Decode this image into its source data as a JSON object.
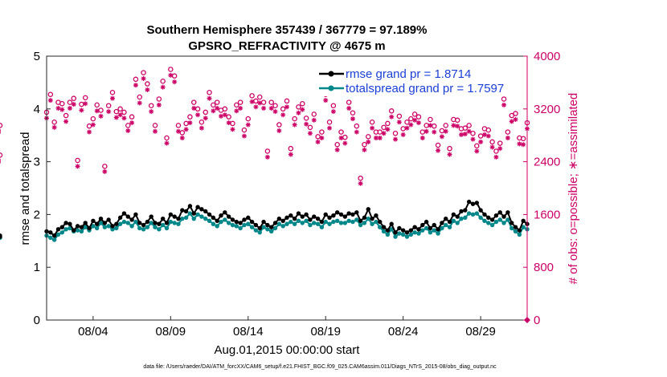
{
  "chart_data": {
    "type": "line",
    "title": "Southern Hemisphere 357439 / 367779 = 97.189%",
    "subtitle": "GPSRO_REFRACTIVITY @ 4675 m",
    "xlabel": "Aug.01,2015 00:00:00 start",
    "ylabel": "rmse and totalspread",
    "ylabel_right": "# of obs: o=possible; ∗=assimilated",
    "footer": "data file: /Users/raeder/DAI/ATM_forcXX/CAM6_setup/f.e21.FHIST_BGC.f09_025.CAM6assim.011/Diags_NTrS_2015-08/obs_diag_output.nc",
    "x_start_day": 1,
    "x_ticks": [
      {
        "label": "08/04",
        "day": 4
      },
      {
        "label": "08/09",
        "day": 9
      },
      {
        "label": "08/14",
        "day": 14
      },
      {
        "label": "08/19",
        "day": 19
      },
      {
        "label": "08/24",
        "day": 24
      },
      {
        "label": "08/29",
        "day": 29
      }
    ],
    "xlim_days": [
      1,
      32
    ],
    "ylim": [
      0,
      5
    ],
    "yticks": [
      "0",
      "1",
      "2",
      "3",
      "4",
      "5"
    ],
    "ylim_right": [
      0,
      4000
    ],
    "yticks_right": [
      "0",
      "800",
      "1600",
      "2400",
      "3200",
      "4000"
    ],
    "grid": false,
    "legend_position": "top-right",
    "colors": {
      "rmse": "#000000",
      "totalspread": "#00878a",
      "obs": "#cc0066",
      "legend_text": "#1a3fd6"
    },
    "series": [
      {
        "name": "rmse grand pr = 1.8714",
        "marker": "circle",
        "x_day_offsets": [
          0.0,
          0.25,
          0.5,
          0.75,
          1.0,
          1.25,
          1.5,
          1.75,
          2.0,
          2.25,
          2.5,
          2.75,
          3.0,
          3.25,
          3.5,
          3.75,
          4.0,
          4.25,
          4.5,
          4.75,
          5.0,
          5.25,
          5.5,
          5.75,
          6.0,
          6.25,
          6.5,
          6.75,
          7.0,
          7.25,
          7.5,
          7.75,
          8.0,
          8.25,
          8.5,
          8.75,
          9.0,
          9.25,
          9.5,
          9.75,
          10.0,
          10.25,
          10.5,
          10.75,
          11.0,
          11.25,
          11.5,
          11.75,
          12.0,
          12.25,
          12.5,
          12.75,
          13.0,
          13.25,
          13.5,
          13.75,
          14.0,
          14.25,
          14.5,
          14.75,
          15.0,
          15.25,
          15.5,
          15.75,
          16.0,
          16.25,
          16.5,
          16.75,
          17.0,
          17.25,
          17.5,
          17.75,
          18.0,
          18.25,
          18.5,
          18.75,
          19.0,
          19.25,
          19.5,
          19.75,
          20.0,
          20.25,
          20.5,
          20.75,
          21.0,
          21.25,
          21.5,
          21.75,
          22.0,
          22.25,
          22.5,
          22.75,
          23.0,
          23.25,
          23.5,
          23.75,
          24.0,
          24.25,
          24.5,
          24.75,
          25.0,
          25.25,
          25.5,
          25.75,
          26.0,
          26.25,
          26.5,
          26.75,
          27.0,
          27.25,
          27.5,
          27.75,
          28.0,
          28.25,
          28.5,
          28.75,
          29.0,
          29.25,
          29.5,
          29.75,
          30.0,
          30.25,
          30.5,
          30.75,
          31.0
        ],
        "values": [
          1.68,
          1.66,
          1.6,
          1.72,
          1.76,
          1.84,
          1.82,
          1.7,
          1.78,
          1.76,
          1.84,
          1.74,
          1.88,
          1.82,
          1.92,
          1.84,
          1.9,
          1.78,
          1.82,
          1.94,
          2.02,
          1.96,
          1.9,
          2.0,
          1.84,
          1.8,
          1.86,
          1.96,
          1.84,
          1.82,
          1.92,
          1.84,
          2.0,
          1.96,
          1.92,
          2.08,
          2.06,
          2.16,
          2.02,
          2.14,
          2.1,
          2.06,
          2.0,
          1.94,
          1.88,
          1.98,
          2.04,
          1.96,
          1.9,
          1.86,
          1.84,
          1.9,
          1.94,
          1.86,
          1.8,
          1.74,
          1.86,
          1.8,
          1.76,
          1.84,
          1.92,
          1.88,
          1.94,
          1.98,
          1.92,
          2.02,
          1.96,
          2.0,
          1.9,
          1.96,
          1.92,
          1.86,
          2.0,
          1.94,
          1.98,
          2.04,
          2.0,
          1.96,
          2.02,
          2.0,
          2.04,
          1.88,
          1.94,
          2.1,
          1.92,
          1.98,
          1.86,
          1.76,
          1.7,
          1.82,
          1.66,
          1.74,
          1.7,
          1.66,
          1.7,
          1.76,
          1.72,
          1.8,
          1.86,
          1.74,
          1.8,
          1.72,
          1.84,
          1.92,
          1.86,
          2.0,
          1.96,
          2.06,
          2.08,
          2.24,
          2.2,
          2.22,
          2.08,
          2.0,
          1.94,
          1.9,
          1.98,
          2.04,
          1.96,
          2.04,
          1.84,
          1.76,
          1.7,
          1.88,
          1.82,
          1.6,
          1.58
        ]
      },
      {
        "name": "totalspread grand pr = 1.7597",
        "marker": "circle",
        "x_day_offsets": [
          0.0,
          0.25,
          0.5,
          0.75,
          1.0,
          1.25,
          1.5,
          1.75,
          2.0,
          2.25,
          2.5,
          2.75,
          3.0,
          3.25,
          3.5,
          3.75,
          4.0,
          4.25,
          4.5,
          4.75,
          5.0,
          5.25,
          5.5,
          5.75,
          6.0,
          6.25,
          6.5,
          6.75,
          7.0,
          7.25,
          7.5,
          7.75,
          8.0,
          8.25,
          8.5,
          8.75,
          9.0,
          9.25,
          9.5,
          9.75,
          10.0,
          10.25,
          10.5,
          10.75,
          11.0,
          11.25,
          11.5,
          11.75,
          12.0,
          12.25,
          12.5,
          12.75,
          13.0,
          13.25,
          13.5,
          13.75,
          14.0,
          14.25,
          14.5,
          14.75,
          15.0,
          15.25,
          15.5,
          15.75,
          16.0,
          16.25,
          16.5,
          16.75,
          17.0,
          17.25,
          17.5,
          17.75,
          18.0,
          18.25,
          18.5,
          18.75,
          19.0,
          19.25,
          19.5,
          19.75,
          20.0,
          20.25,
          20.5,
          20.75,
          21.0,
          21.25,
          21.5,
          21.75,
          22.0,
          22.25,
          22.5,
          22.75,
          23.0,
          23.25,
          23.5,
          23.75,
          24.0,
          24.25,
          24.5,
          24.75,
          25.0,
          25.25,
          25.5,
          25.75,
          26.0,
          26.25,
          26.5,
          26.75,
          27.0,
          27.25,
          27.5,
          27.75,
          28.0,
          28.25,
          28.5,
          28.75,
          29.0,
          29.25,
          29.5,
          29.75,
          30.0,
          30.25,
          30.5,
          30.75,
          31.0
        ],
        "values": [
          1.6,
          1.56,
          1.52,
          1.62,
          1.66,
          1.72,
          1.74,
          1.68,
          1.7,
          1.68,
          1.76,
          1.7,
          1.78,
          1.74,
          1.84,
          1.76,
          1.78,
          1.72,
          1.74,
          1.82,
          1.86,
          1.84,
          1.78,
          1.86,
          1.74,
          1.72,
          1.76,
          1.84,
          1.76,
          1.72,
          1.8,
          1.74,
          1.86,
          1.84,
          1.82,
          1.92,
          1.94,
          2.02,
          1.92,
          2.0,
          1.96,
          1.92,
          1.88,
          1.82,
          1.78,
          1.86,
          1.9,
          1.84,
          1.8,
          1.78,
          1.74,
          1.8,
          1.82,
          1.76,
          1.7,
          1.66,
          1.76,
          1.72,
          1.68,
          1.74,
          1.82,
          1.78,
          1.82,
          1.86,
          1.82,
          1.88,
          1.84,
          1.88,
          1.8,
          1.84,
          1.82,
          1.76,
          1.86,
          1.82,
          1.86,
          1.88,
          1.84,
          1.84,
          1.88,
          1.86,
          1.9,
          1.8,
          1.84,
          1.92,
          1.82,
          1.86,
          1.76,
          1.68,
          1.62,
          1.72,
          1.58,
          1.64,
          1.62,
          1.58,
          1.62,
          1.66,
          1.64,
          1.7,
          1.74,
          1.66,
          1.7,
          1.64,
          1.74,
          1.8,
          1.76,
          1.88,
          1.84,
          1.92,
          1.94,
          2.02,
          2.0,
          2.02,
          1.94,
          1.88,
          1.84,
          1.8,
          1.86,
          1.9,
          1.84,
          1.9,
          1.74,
          1.68,
          1.62,
          1.76,
          1.72,
          1.56,
          1.56
        ]
      },
      {
        "name": "possible",
        "axis": "right",
        "marker": "o",
        "x_day_offsets": [
          0.0,
          0.25,
          0.5,
          0.75,
          1.0,
          1.25,
          1.5,
          1.75,
          2.0,
          2.25,
          2.5,
          2.75,
          3.0,
          3.25,
          3.5,
          3.75,
          4.0,
          4.25,
          4.5,
          4.75,
          5.0,
          5.25,
          5.5,
          5.75,
          6.0,
          6.25,
          6.5,
          6.75,
          7.0,
          7.25,
          7.5,
          7.75,
          8.0,
          8.25,
          8.5,
          8.75,
          9.0,
          9.25,
          9.5,
          9.75,
          10.0,
          10.25,
          10.5,
          10.75,
          11.0,
          11.25,
          11.5,
          11.75,
          12.0,
          12.25,
          12.5,
          12.75,
          13.0,
          13.25,
          13.5,
          13.75,
          14.0,
          14.25,
          14.5,
          14.75,
          15.0,
          15.25,
          15.5,
          15.75,
          16.0,
          16.25,
          16.5,
          16.75,
          17.0,
          17.25,
          17.5,
          17.75,
          18.0,
          18.25,
          18.5,
          18.75,
          19.0,
          19.25,
          19.5,
          19.75,
          20.0,
          20.25,
          20.5,
          20.75,
          21.0,
          21.25,
          21.5,
          21.75,
          22.0,
          22.25,
          22.5,
          22.75,
          23.0,
          23.25,
          23.5,
          23.75,
          24.0,
          24.25,
          24.5,
          24.75,
          25.0,
          25.25,
          25.5,
          25.75,
          26.0,
          26.25,
          26.5,
          26.75,
          27.0,
          27.25,
          27.5,
          27.75,
          28.0,
          28.25,
          28.5,
          28.75,
          29.0,
          29.25,
          29.5,
          29.75,
          30.0,
          30.25,
          30.5,
          30.75,
          31.0
        ],
        "values": [
          3150,
          3420,
          3000,
          3300,
          3280,
          3100,
          3300,
          3360,
          2420,
          3270,
          3370,
          2940,
          3050,
          3260,
          3180,
          2330,
          3250,
          3450,
          3160,
          3200,
          3150,
          2950,
          3080,
          3650,
          3380,
          3750,
          3580,
          3250,
          2950,
          3350,
          3620,
          2760,
          3800,
          3700,
          2950,
          2840,
          2980,
          3080,
          3300,
          3200,
          3000,
          3150,
          3450,
          3260,
          3300,
          3180,
          3200,
          3080,
          2980,
          3260,
          3300,
          2880,
          3050,
          3400,
          3320,
          3380,
          3300,
          2560,
          3300,
          3250,
          2960,
          3200,
          3320,
          2600,
          3050,
          3230,
          3280,
          3060,
          2920,
          3120,
          2780,
          2850,
          3420,
          3000,
          3250,
          2660,
          2850,
          2770,
          3300,
          3140,
          2940,
          2150,
          2660,
          2780,
          3000,
          2850,
          2850,
          2920,
          2980,
          3170,
          2830,
          3090,
          2900,
          3000,
          3050,
          3120,
          3080,
          2850,
          2950,
          3040,
          2940,
          2650,
          2870,
          2950,
          2600,
          3040,
          3030,
          2900,
          2910,
          2950,
          2830,
          2640,
          2790,
          2900,
          2880,
          2700,
          2560,
          2680,
          3350,
          2850,
          3100,
          3130,
          2760,
          2750,
          2990,
          2950,
          2500
        ]
      },
      {
        "name": "assimilated",
        "axis": "right",
        "marker": "*",
        "x_day_offsets": [
          0.0,
          0.25,
          0.5,
          0.75,
          1.0,
          1.25,
          1.5,
          1.75,
          2.0,
          2.25,
          2.5,
          2.75,
          3.0,
          3.25,
          3.5,
          3.75,
          4.0,
          4.25,
          4.5,
          4.75,
          5.0,
          5.25,
          5.5,
          5.75,
          6.0,
          6.25,
          6.5,
          6.75,
          7.0,
          7.25,
          7.5,
          7.75,
          8.0,
          8.25,
          8.5,
          8.75,
          9.0,
          9.25,
          9.5,
          9.75,
          10.0,
          10.25,
          10.5,
          10.75,
          11.0,
          11.25,
          11.5,
          11.75,
          12.0,
          12.25,
          12.5,
          12.75,
          13.0,
          13.25,
          13.5,
          13.75,
          14.0,
          14.25,
          14.5,
          14.75,
          15.0,
          15.25,
          15.5,
          15.75,
          16.0,
          16.25,
          16.5,
          16.75,
          17.0,
          17.25,
          17.5,
          17.75,
          18.0,
          18.25,
          18.5,
          18.75,
          19.0,
          19.25,
          19.5,
          19.75,
          20.0,
          20.25,
          20.5,
          20.75,
          21.0,
          21.25,
          21.5,
          21.75,
          22.0,
          22.25,
          22.5,
          22.75,
          23.0,
          23.25,
          23.5,
          23.75,
          24.0,
          24.25,
          24.5,
          24.75,
          25.0,
          25.25,
          25.5,
          25.75,
          26.0,
          26.25,
          26.5,
          26.75,
          27.0,
          27.25,
          27.5,
          27.75,
          28.0,
          28.25,
          28.5,
          28.75,
          29.0,
          29.25,
          29.5,
          29.75,
          30.0,
          30.25,
          30.5,
          30.75,
          31.0
        ],
        "values": [
          3060,
          3330,
          2920,
          3210,
          3190,
          3010,
          3210,
          3270,
          2330,
          3180,
          3280,
          2850,
          2960,
          3170,
          3090,
          2250,
          3160,
          3360,
          3070,
          3110,
          3060,
          2870,
          2990,
          3560,
          3290,
          3660,
          3490,
          3160,
          2860,
          3260,
          3530,
          2680,
          3710,
          3610,
          2860,
          2760,
          2890,
          2990,
          3210,
          3110,
          2910,
          3060,
          3360,
          3170,
          3210,
          3090,
          3110,
          2990,
          2890,
          3170,
          3210,
          2790,
          2960,
          3310,
          3230,
          3290,
          3210,
          2470,
          3210,
          3160,
          2870,
          3110,
          3230,
          2510,
          2960,
          3140,
          3190,
          2970,
          2830,
          3030,
          2700,
          2760,
          3330,
          2910,
          3160,
          2580,
          2760,
          2680,
          3210,
          3050,
          2850,
          2070,
          2580,
          2700,
          2910,
          2760,
          2760,
          2830,
          2890,
          3080,
          2740,
          3000,
          2810,
          2910,
          2960,
          3030,
          2990,
          2760,
          2860,
          2950,
          2850,
          2570,
          2780,
          2860,
          2510,
          2950,
          2940,
          2810,
          2820,
          2860,
          2740,
          2560,
          2700,
          2810,
          2790,
          2620,
          2470,
          2600,
          3260,
          2760,
          3010,
          3040,
          2670,
          2660,
          2900,
          2860,
          2410
        ]
      }
    ]
  }
}
